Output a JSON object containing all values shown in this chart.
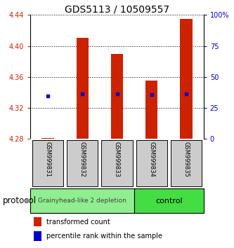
{
  "title": "GDS5113 / 10509557",
  "samples": [
    "GSM999831",
    "GSM999832",
    "GSM999833",
    "GSM999834",
    "GSM999835"
  ],
  "red_values": [
    4.281,
    4.41,
    4.39,
    4.355,
    4.435
  ],
  "blue_values": [
    4.335,
    4.338,
    4.338,
    4.337,
    4.338
  ],
  "red_base": 4.28,
  "ylim": [
    4.28,
    4.44
  ],
  "yticks": [
    4.28,
    4.32,
    4.36,
    4.4,
    4.44
  ],
  "right_yticks": [
    0,
    25,
    50,
    75,
    100
  ],
  "right_ylabels": [
    "0",
    "25",
    "50",
    "75",
    "100%"
  ],
  "group1_label": "Grainyhead-like 2 depletion",
  "group2_label": "control",
  "group1_color": "#90EE90",
  "group2_color": "#44DD44",
  "protocol_label": "protocol",
  "legend_red_label": "transformed count",
  "legend_blue_label": "percentile rank within the sample",
  "red_color": "#CC2200",
  "blue_color": "#0000CC",
  "bar_width": 0.35,
  "background_color": "#ffffff",
  "tick_label_color_left": "#CC2200",
  "tick_label_color_right": "#0000CC",
  "label_bg_color": "#cccccc",
  "title_fontsize": 10,
  "tick_fontsize": 7,
  "sample_fontsize": 6,
  "legend_fontsize": 7
}
